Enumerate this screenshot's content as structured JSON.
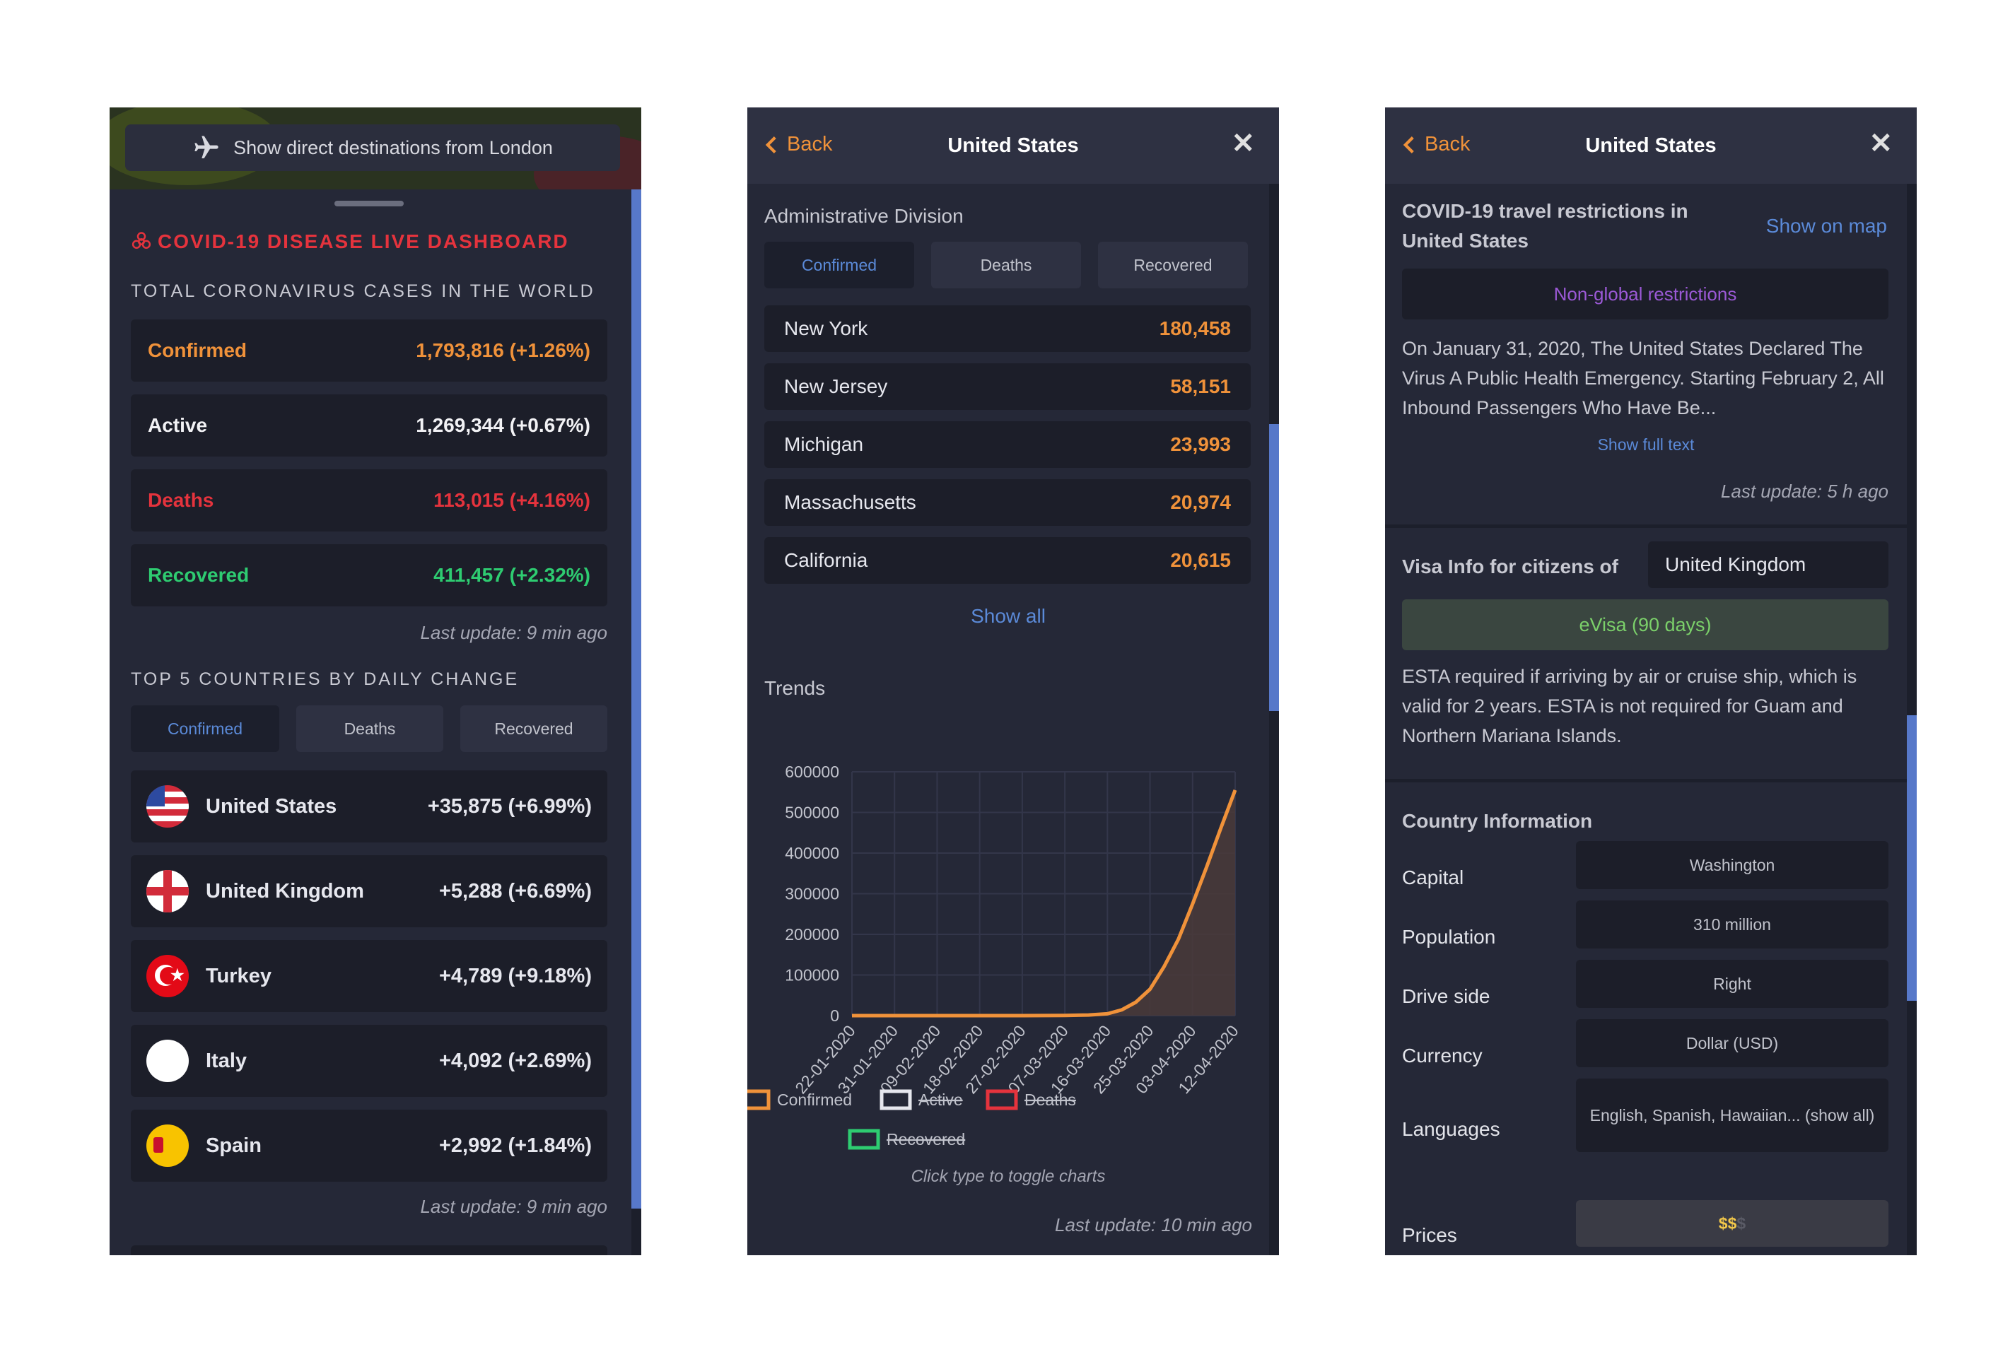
{
  "colors": {
    "panel_bg": "#252837",
    "row_bg": "#1c1e29",
    "orange": "#f0923a",
    "red": "#e5333d",
    "green": "#2ecc71",
    "blue": "#5b8ad8",
    "purple": "#9b59d6"
  },
  "dashboard": {
    "destinations_icon": "airplane-icon",
    "destinations_label": "Show direct destinations from London",
    "title": "COVID-19 DISEASE LIVE DASHBOARD",
    "title_icon": "biohazard-icon",
    "total_caption": "TOTAL CORONAVIRUS CASES IN THE WORLD",
    "stats": [
      {
        "label": "Confirmed",
        "value": "1,793,816 (+1.26%)",
        "color": "#f0923a"
      },
      {
        "label": "Active",
        "value": "1,269,344 (+0.67%)",
        "color": "#f2f2f5"
      },
      {
        "label": "Deaths",
        "value": "113,015 (+4.16%)",
        "color": "#e5333d"
      },
      {
        "label": "Recovered",
        "value": "411,457 (+2.32%)",
        "color": "#2ecc71"
      }
    ],
    "last_update_1": "Last update: 9 min ago",
    "top5_caption": "TOP 5 COUNTRIES BY DAILY CHANGE",
    "tabs": [
      "Confirmed",
      "Deaths",
      "Recovered"
    ],
    "countries": [
      {
        "name": "United States",
        "change": "+35,875 (+6.99%)",
        "flag": "us-flag-icon"
      },
      {
        "name": "United Kingdom",
        "change": "+5,288 (+6.69%)",
        "flag": "uk-flag-icon"
      },
      {
        "name": "Turkey",
        "change": "+4,789 (+9.18%)",
        "flag": "turkey-flag-icon"
      },
      {
        "name": "Italy",
        "change": "+4,092 (+2.69%)",
        "flag": "italy-flag-icon"
      },
      {
        "name": "Spain",
        "change": "+2,992 (+1.84%)",
        "flag": "spain-flag-icon"
      }
    ],
    "last_update_2": "Last update: 9 min ago"
  },
  "country_panel": {
    "back": "Back",
    "title": "United States",
    "admin_caption": "Administrative Division",
    "tabs": [
      "Confirmed",
      "Deaths",
      "Recovered"
    ],
    "states": [
      {
        "name": "New York",
        "value": "180,458"
      },
      {
        "name": "New Jersey",
        "value": "58,151"
      },
      {
        "name": "Michigan",
        "value": "23,993"
      },
      {
        "name": "Massachusetts",
        "value": "20,974"
      },
      {
        "name": "California",
        "value": "20,615"
      }
    ],
    "show_all": "Show all",
    "trends_caption": "Trends",
    "legend": [
      {
        "label": "Confirmed",
        "color": "#f0923a",
        "enabled": true
      },
      {
        "label": "Active",
        "color": "#e6e7ee",
        "enabled": false
      },
      {
        "label": "Deaths",
        "color": "#e5333d",
        "enabled": false
      },
      {
        "label": "Recovered",
        "color": "#2ecc71",
        "enabled": false
      }
    ],
    "toggle_hint": "Click type to toggle charts",
    "last_update": "Last update: 10 min ago"
  },
  "chart_data": {
    "type": "area",
    "title": "",
    "xlabel": "",
    "ylabel": "",
    "ylim": [
      0,
      600000
    ],
    "y_ticks": [
      "600000",
      "500000",
      "400000",
      "300000",
      "200000",
      "100000",
      "0"
    ],
    "x_ticks": [
      "22-01-2020",
      "31-01-2020",
      "09-02-2020",
      "18-02-2020",
      "27-02-2020",
      "07-03-2020",
      "16-03-2020",
      "25-03-2020",
      "03-04-2020",
      "12-04-2020"
    ],
    "grid": true,
    "series": [
      {
        "name": "Confirmed",
        "color": "#f0923a",
        "x": [
          "22-01-2020",
          "31-01-2020",
          "09-02-2020",
          "18-02-2020",
          "27-02-2020",
          "07-03-2020",
          "12-03-2020",
          "16-03-2020",
          "19-03-2020",
          "22-03-2020",
          "25-03-2020",
          "28-03-2020",
          "31-03-2020",
          "03-04-2020",
          "06-04-2020",
          "09-04-2020",
          "12-04-2020"
        ],
        "values": [
          1,
          8,
          12,
          15,
          60,
          400,
          1600,
          4600,
          14000,
          33000,
          65000,
          121000,
          188000,
          275000,
          367000,
          462000,
          555000
        ]
      }
    ]
  },
  "travel_panel": {
    "back": "Back",
    "title": "United States",
    "restrictions_heading": "COVID-19 travel restrictions in United States",
    "show_on_map": "Show on map",
    "restriction_badge": "Non-global restrictions",
    "restriction_text": "On January 31, 2020, The United States Declared The Virus A Public Health Emergency. Starting February 2, All Inbound Passengers Who Have Be...",
    "show_full_text": "Show full text",
    "last_update": "Last update: 5 h ago",
    "visa_label": "Visa Info for citizens of",
    "visa_country": "United Kingdom",
    "visa_badge": "eVisa (90 days)",
    "visa_text": "ESTA required if arriving by air or cruise ship, which is valid for 2 years. ESTA is not required for Guam and Northern Mariana Islands.",
    "country_info_heading": "Country Information",
    "info": [
      {
        "label": "Capital",
        "value": "Washington"
      },
      {
        "label": "Population",
        "value": "310 million"
      },
      {
        "label": "Drive side",
        "value": "Right"
      },
      {
        "label": "Currency",
        "value": "Dollar (USD)"
      },
      {
        "label": "Languages",
        "value": "English, Spanish, Hawaiian... (show all)"
      }
    ],
    "prices_label": "Prices",
    "prices_value": "$$",
    "prices_dim": "$"
  }
}
